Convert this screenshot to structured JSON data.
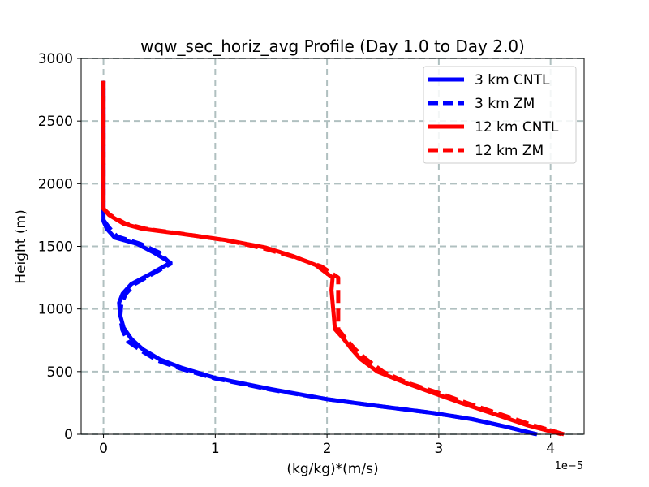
{
  "chart_data": {
    "type": "line",
    "title": "wqw_sec_horiz_avg Profile (Day 1.0 to Day 2.0)",
    "xlabel": "(kg/kg)*(m/s)",
    "ylabel": "Height (m)",
    "x_scale_note": "1e−5",
    "xlim": [
      -0.2,
      4.3
    ],
    "ylim": [
      0,
      3000
    ],
    "x_ticks": [
      0,
      1,
      2,
      3,
      4
    ],
    "x_tick_labels": [
      "0",
      "1",
      "2",
      "3",
      "4"
    ],
    "y_ticks": [
      0,
      500,
      1000,
      1500,
      2000,
      2500,
      3000
    ],
    "y_tick_labels": [
      "0",
      "500",
      "1000",
      "1500",
      "2000",
      "2500",
      "3000"
    ],
    "grid": true,
    "legend_position": "top-right",
    "series": [
      {
        "name": "3 km CNTL",
        "color": "#0000ff",
        "style": "solid",
        "points": [
          [
            3.87,
            0
          ],
          [
            3.6,
            60
          ],
          [
            3.3,
            120
          ],
          [
            2.95,
            170
          ],
          [
            2.5,
            220
          ],
          [
            2.0,
            280
          ],
          [
            1.5,
            360
          ],
          [
            1.0,
            450
          ],
          [
            0.7,
            530
          ],
          [
            0.5,
            600
          ],
          [
            0.35,
            680
          ],
          [
            0.25,
            760
          ],
          [
            0.18,
            850
          ],
          [
            0.15,
            950
          ],
          [
            0.14,
            1050
          ],
          [
            0.17,
            1120
          ],
          [
            0.25,
            1200
          ],
          [
            0.4,
            1270
          ],
          [
            0.6,
            1370
          ],
          [
            0.45,
            1450
          ],
          [
            0.3,
            1520
          ],
          [
            0.1,
            1570
          ],
          [
            0.03,
            1640
          ],
          [
            0.0,
            1700
          ],
          [
            0.0,
            1760
          ],
          [
            0.0,
            1800
          ],
          [
            0.0,
            2000
          ],
          [
            0.0,
            2500
          ],
          [
            0.0,
            2820
          ]
        ]
      },
      {
        "name": "3 km ZM",
        "color": "#0000ff",
        "style": "dashed",
        "points": [
          [
            3.88,
            0
          ],
          [
            3.6,
            60
          ],
          [
            3.3,
            120
          ],
          [
            2.95,
            170
          ],
          [
            2.5,
            220
          ],
          [
            2.0,
            280
          ],
          [
            1.5,
            355
          ],
          [
            1.0,
            445
          ],
          [
            0.7,
            520
          ],
          [
            0.48,
            590
          ],
          [
            0.35,
            660
          ],
          [
            0.22,
            740
          ],
          [
            0.17,
            830
          ],
          [
            0.15,
            930
          ],
          [
            0.16,
            1040
          ],
          [
            0.2,
            1120
          ],
          [
            0.28,
            1200
          ],
          [
            0.42,
            1270
          ],
          [
            0.6,
            1360
          ],
          [
            0.5,
            1450
          ],
          [
            0.33,
            1520
          ],
          [
            0.12,
            1580
          ],
          [
            0.05,
            1650
          ],
          [
            0.0,
            1710
          ],
          [
            0.0,
            1780
          ],
          [
            0.0,
            2000
          ],
          [
            0.0,
            2500
          ],
          [
            0.0,
            2820
          ]
        ]
      },
      {
        "name": "12 km CNTL",
        "color": "#ff0000",
        "style": "solid",
        "points": [
          [
            4.1,
            0
          ],
          [
            3.8,
            70
          ],
          [
            3.5,
            160
          ],
          [
            3.2,
            250
          ],
          [
            2.95,
            330
          ],
          [
            2.7,
            410
          ],
          [
            2.45,
            500
          ],
          [
            2.3,
            600
          ],
          [
            2.22,
            680
          ],
          [
            2.15,
            760
          ],
          [
            2.07,
            840
          ],
          [
            2.06,
            950
          ],
          [
            2.05,
            1050
          ],
          [
            2.04,
            1150
          ],
          [
            2.05,
            1250
          ],
          [
            1.9,
            1350
          ],
          [
            1.7,
            1420
          ],
          [
            1.45,
            1490
          ],
          [
            1.1,
            1550
          ],
          [
            0.7,
            1600
          ],
          [
            0.35,
            1640
          ],
          [
            0.18,
            1680
          ],
          [
            0.05,
            1750
          ],
          [
            0.0,
            1800
          ],
          [
            0.0,
            2000
          ],
          [
            0.0,
            2500
          ],
          [
            0.0,
            2820
          ]
        ]
      },
      {
        "name": "12 km ZM",
        "color": "#ff0000",
        "style": "dashed",
        "points": [
          [
            4.12,
            0
          ],
          [
            3.85,
            70
          ],
          [
            3.55,
            160
          ],
          [
            3.25,
            250
          ],
          [
            3.0,
            330
          ],
          [
            2.72,
            410
          ],
          [
            2.5,
            500
          ],
          [
            2.35,
            600
          ],
          [
            2.25,
            680
          ],
          [
            2.17,
            760
          ],
          [
            2.1,
            840
          ],
          [
            2.1,
            950
          ],
          [
            2.1,
            1050
          ],
          [
            2.1,
            1150
          ],
          [
            2.1,
            1250
          ],
          [
            1.95,
            1340
          ],
          [
            1.72,
            1410
          ],
          [
            1.45,
            1480
          ],
          [
            1.12,
            1545
          ],
          [
            0.75,
            1595
          ],
          [
            0.38,
            1640
          ],
          [
            0.2,
            1680
          ],
          [
            0.06,
            1750
          ],
          [
            0.0,
            1800
          ],
          [
            0.0,
            2000
          ],
          [
            0.0,
            2500
          ],
          [
            0.0,
            2820
          ]
        ]
      }
    ]
  }
}
